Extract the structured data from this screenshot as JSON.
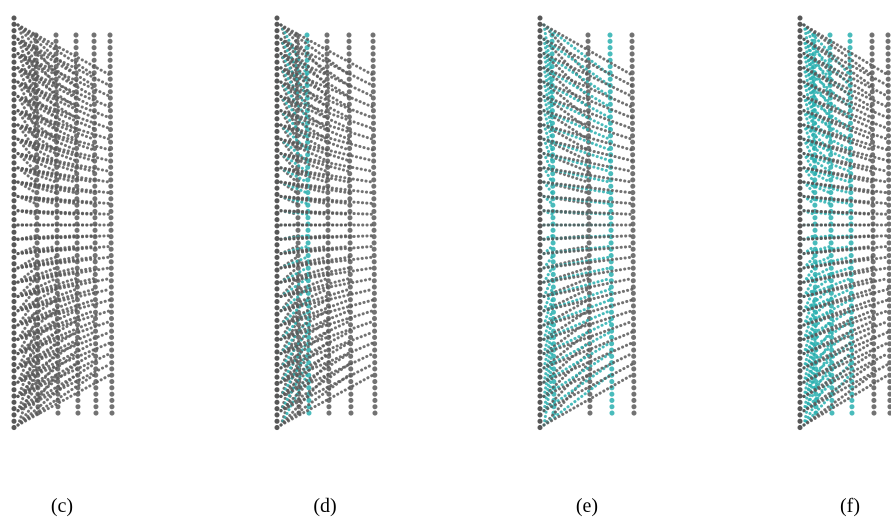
{
  "figure": {
    "panels": [
      {
        "label": "(c)"
      },
      {
        "label": "(d)"
      },
      {
        "label": "(e)"
      },
      {
        "label": "(f)"
      }
    ]
  }
}
